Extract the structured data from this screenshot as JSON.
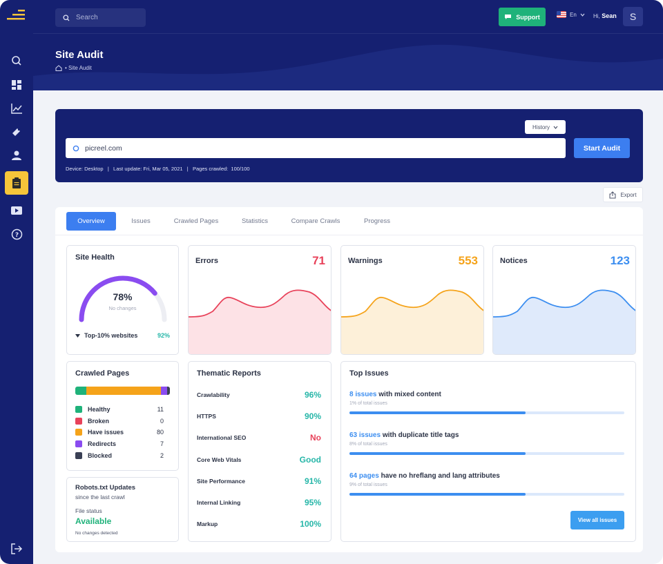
{
  "header": {
    "search_placeholder": "Search",
    "support_label": "Support",
    "language": "En",
    "greeting": "Hi,",
    "user_name": "Sean",
    "avatar_initial": "S",
    "page_title": "Site Audit",
    "breadcrumb": "• Site Audit"
  },
  "sidebar": {
    "items": [
      "search-icon",
      "dashboard-icon",
      "chart-icon",
      "tag-icon",
      "user-icon",
      "clipboard-icon",
      "video-icon",
      "help-icon"
    ],
    "active": "clipboard-icon",
    "footer_icon": "logout-icon"
  },
  "audit": {
    "history_label": "History",
    "url_value": "picreel.com",
    "start_label": "Start Audit",
    "meta": "Device: Desktop   |   Last update: Fri, Mar 05, 2021   |   Pages crawled:  100/100",
    "export_label": "Export"
  },
  "tabs": [
    "Overview",
    "Issues",
    "Crawled Pages",
    "Statistics",
    "Compare Crawls",
    "Progress"
  ],
  "site_health": {
    "title": "Site Health",
    "percent": "78%",
    "percent_value": 78,
    "sub": "No changes",
    "top_label": "Top-10% websites",
    "top_value": "92%"
  },
  "errors": {
    "title": "Errors",
    "value": "71",
    "color": "#e8425a"
  },
  "warnings": {
    "title": "Warnings",
    "value": "553",
    "color": "#f5a31a"
  },
  "notices": {
    "title": "Notices",
    "value": "123",
    "color": "#3c8ef0"
  },
  "crawled_pages": {
    "title": "Crawled Pages",
    "items": [
      {
        "label": "Healthy",
        "value": "11",
        "color": "#1fb27a"
      },
      {
        "label": "Broken",
        "value": "0",
        "color": "#e8425a"
      },
      {
        "label": "Have issues",
        "value": "80",
        "color": "#f5a31a"
      },
      {
        "label": "Redirects",
        "value": "7",
        "color": "#8a4cf0"
      },
      {
        "label": "Blocked",
        "value": "2",
        "color": "#3a4055"
      }
    ]
  },
  "robots": {
    "title": "Robots.txt Updates",
    "since": "since the last crawl",
    "status_label": "File status",
    "status_value": "Available",
    "note": "No changes detected"
  },
  "thematic": {
    "title": "Thematic Reports",
    "rows": [
      {
        "label": "Crawlability",
        "value": "96%",
        "color": "#26b6a8"
      },
      {
        "label": "HTTPS",
        "value": "90%",
        "color": "#26b6a8"
      },
      {
        "label": "International SEO",
        "value": "No",
        "color": "#e8425a"
      },
      {
        "label": "Core Web Vitals",
        "value": "Good",
        "color": "#26b6a8"
      },
      {
        "label": "Site Performance",
        "value": "91%",
        "color": "#26b6a8"
      },
      {
        "label": "Internal Linking",
        "value": "95%",
        "color": "#26b6a8"
      },
      {
        "label": "Markup",
        "value": "100%",
        "color": "#26b6a8"
      }
    ]
  },
  "top_issues": {
    "title": "Top Issues",
    "items": [
      {
        "count": "8 issues",
        "text": " with mixed content",
        "sub": "1% of total issues",
        "fill": 0.64
      },
      {
        "count": "63 issues",
        "text": " with duplicate title tags",
        "sub": "8% of total issues",
        "fill": 0.64
      },
      {
        "count": "64 pages",
        "text": " have no hreflang and lang attributes",
        "sub": "9% of total issues",
        "fill": 0.64
      }
    ],
    "view_all": "View all issues"
  }
}
